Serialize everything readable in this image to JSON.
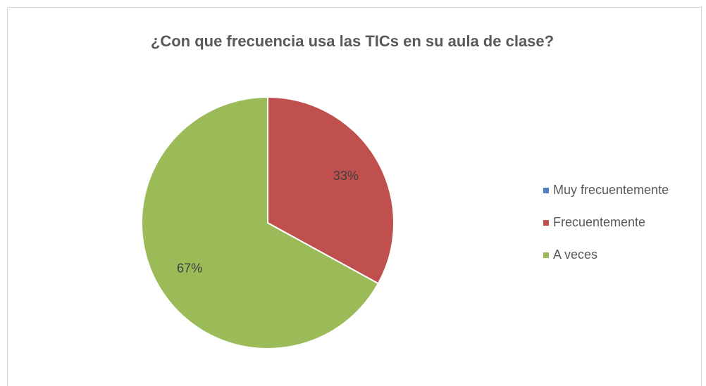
{
  "chart_data": {
    "type": "pie",
    "title": "¿Con que frecuencia usa las TICs en su aula de clase?",
    "categories": [
      "Muy frecuentemente",
      "Frecuentemente",
      "A veces"
    ],
    "values": [
      0,
      33,
      67
    ],
    "value_labels": [
      null,
      "33%",
      "67%"
    ],
    "colors": [
      "#4f81bd",
      "#c0504d",
      "#9bbb59"
    ],
    "legend": "right"
  }
}
